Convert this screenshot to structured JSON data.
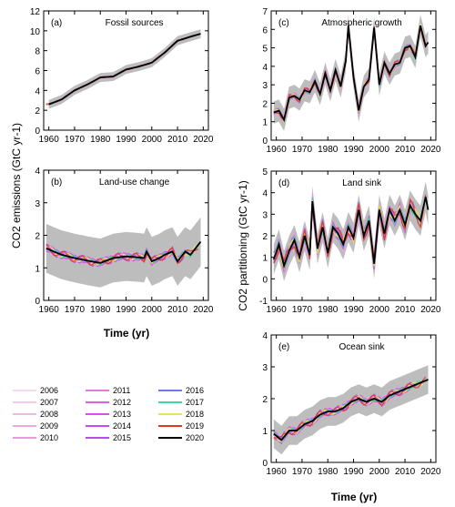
{
  "chart_data": [
    {
      "id": "a",
      "type": "line",
      "panel_label": "(a)",
      "title": "Fossil sources",
      "xlim": [
        1958,
        2022
      ],
      "ylim": [
        0,
        12
      ],
      "yticks": [
        0,
        2,
        4,
        6,
        8,
        10,
        12
      ],
      "xticks": [
        1960,
        1970,
        1980,
        1990,
        2000,
        2010,
        2020
      ],
      "spread": 0.05,
      "band": 0.45,
      "x": [
        1960,
        1965,
        1970,
        1975,
        1980,
        1985,
        1990,
        1995,
        2000,
        2005,
        2010,
        2015,
        2019
      ],
      "series": [
        {
          "name": "2020",
          "values": [
            2.6,
            3.1,
            4.0,
            4.6,
            5.3,
            5.4,
            6.1,
            6.4,
            6.8,
            7.8,
            9.0,
            9.4,
            9.7
          ]
        }
      ]
    },
    {
      "id": "b",
      "type": "line",
      "panel_label": "(b)",
      "title": "Land-use change",
      "xlim": [
        1958,
        2022
      ],
      "ylim": [
        0,
        4
      ],
      "yticks": [
        0,
        1,
        2,
        3,
        4
      ],
      "xticks": [
        1960,
        1970,
        1980,
        1990,
        2000,
        2010,
        2020
      ],
      "spread": 0.12,
      "band": 0.75,
      "x": [
        1959,
        1962,
        1965,
        1970,
        1975,
        1980,
        1985,
        1990,
        1995,
        1997,
        1998,
        2000,
        2003,
        2005,
        2008,
        2010,
        2013,
        2015,
        2017,
        2019
      ],
      "series": [
        {
          "name": "2020",
          "values": [
            1.6,
            1.5,
            1.4,
            1.3,
            1.22,
            1.15,
            1.3,
            1.35,
            1.32,
            1.3,
            1.5,
            1.2,
            1.3,
            1.4,
            1.5,
            1.2,
            1.5,
            1.4,
            1.6,
            1.8
          ]
        }
      ]
    },
    {
      "id": "c",
      "type": "line",
      "panel_label": "(c)",
      "title": "Atmospheric growth",
      "xlim": [
        1958,
        2022
      ],
      "ylim": [
        0,
        7
      ],
      "yticks": [
        0,
        1,
        2,
        3,
        4,
        5,
        6,
        7
      ],
      "xticks": [
        1960,
        1970,
        1980,
        1990,
        2000,
        2010,
        2020
      ],
      "spread": 0.15,
      "band": 0.6,
      "x": [
        1959,
        1961,
        1963,
        1965,
        1967,
        1969,
        1971,
        1973,
        1975,
        1977,
        1979,
        1981,
        1983,
        1985,
        1987,
        1988,
        1990,
        1992,
        1994,
        1996,
        1998,
        2000,
        2002,
        2004,
        2006,
        2008,
        2010,
        2012,
        2014,
        2016,
        2018,
        2019
      ],
      "series": [
        {
          "name": "2020",
          "values": [
            1.5,
            1.6,
            1.1,
            2.3,
            2.4,
            2.2,
            2.7,
            2.6,
            3.2,
            2.5,
            3.6,
            2.7,
            3.8,
            2.9,
            4.3,
            6.2,
            3.4,
            1.6,
            2.9,
            3.3,
            6.1,
            3.0,
            4.2,
            3.6,
            4.1,
            4.2,
            5.0,
            5.1,
            4.5,
            6.2,
            5.1,
            5.3
          ]
        }
      ]
    },
    {
      "id": "d",
      "type": "line",
      "panel_label": "(d)",
      "title": "Land sink",
      "xlim": [
        1958,
        2022
      ],
      "ylim": [
        -1,
        5
      ],
      "yticks": [
        -1,
        0,
        1,
        2,
        3,
        4,
        5
      ],
      "xticks": [
        1960,
        1970,
        1980,
        1990,
        2000,
        2010,
        2020
      ],
      "spread": 0.3,
      "band": 0.7,
      "x": [
        1959,
        1961,
        1963,
        1965,
        1967,
        1969,
        1971,
        1973,
        1974,
        1976,
        1978,
        1980,
        1982,
        1984,
        1986,
        1988,
        1990,
        1992,
        1994,
        1996,
        1998,
        2000,
        2002,
        2004,
        2006,
        2008,
        2010,
        2012,
        2014,
        2016,
        2018,
        2019
      ],
      "series": [
        {
          "name": "2020",
          "values": [
            0.9,
            1.6,
            0.6,
            1.3,
            1.8,
            1.0,
            2.0,
            1.1,
            3.6,
            1.4,
            2.4,
            1.2,
            2.4,
            2.1,
            1.6,
            2.4,
            1.9,
            3.2,
            2.0,
            2.7,
            0.7,
            3.2,
            2.1,
            3.2,
            2.7,
            3.2,
            2.5,
            3.4,
            3.0,
            2.7,
            3.8,
            3.2
          ]
        }
      ]
    },
    {
      "id": "e",
      "type": "line",
      "panel_label": "(e)",
      "title": "Ocean sink",
      "xlim": [
        1958,
        2022
      ],
      "ylim": [
        0,
        4
      ],
      "yticks": [
        0,
        1,
        2,
        3,
        4
      ],
      "xticks": [
        1960,
        1970,
        1980,
        1990,
        2000,
        2010,
        2020
      ],
      "spread": 0.12,
      "band": 0.45,
      "x": [
        1959,
        1962,
        1965,
        1968,
        1971,
        1974,
        1977,
        1980,
        1983,
        1986,
        1989,
        1992,
        1995,
        1998,
        2001,
        2004,
        2007,
        2010,
        2013,
        2016,
        2019
      ],
      "series": [
        {
          "name": "2020",
          "values": [
            0.9,
            0.7,
            1.0,
            1.0,
            1.2,
            1.3,
            1.5,
            1.6,
            1.6,
            1.7,
            1.9,
            2.0,
            1.9,
            2.0,
            1.9,
            2.1,
            2.2,
            2.3,
            2.4,
            2.5,
            2.6
          ]
        }
      ]
    }
  ],
  "axes": {
    "left_ylabel": "CO2 emissions (GtC yr-1)",
    "right_ylabel": "CO2 partitioning (GtC yr-1)",
    "xlabel": "Time (yr)"
  },
  "legend": [
    {
      "label": "2006",
      "color": "#f7d8ee"
    },
    {
      "label": "2007",
      "color": "#f4c8e6"
    },
    {
      "label": "2008",
      "color": "#f2b8e4"
    },
    {
      "label": "2009",
      "color": "#eeaadf"
    },
    {
      "label": "2010",
      "color": "#e99ad8"
    },
    {
      "label": "2011",
      "color": "#e57be0"
    },
    {
      "label": "2012",
      "color": "#df60e6"
    },
    {
      "label": "2013",
      "color": "#d54fe8"
    },
    {
      "label": "2014",
      "color": "#c94cf0"
    },
    {
      "label": "2015",
      "color": "#b44fec"
    },
    {
      "label": "2016",
      "color": "#6b78e6"
    },
    {
      "label": "2017",
      "color": "#3ed6a3"
    },
    {
      "label": "2018",
      "color": "#e7e25a"
    },
    {
      "label": "2019",
      "color": "#e1341e"
    },
    {
      "label": "2020",
      "color": "#000000"
    }
  ]
}
